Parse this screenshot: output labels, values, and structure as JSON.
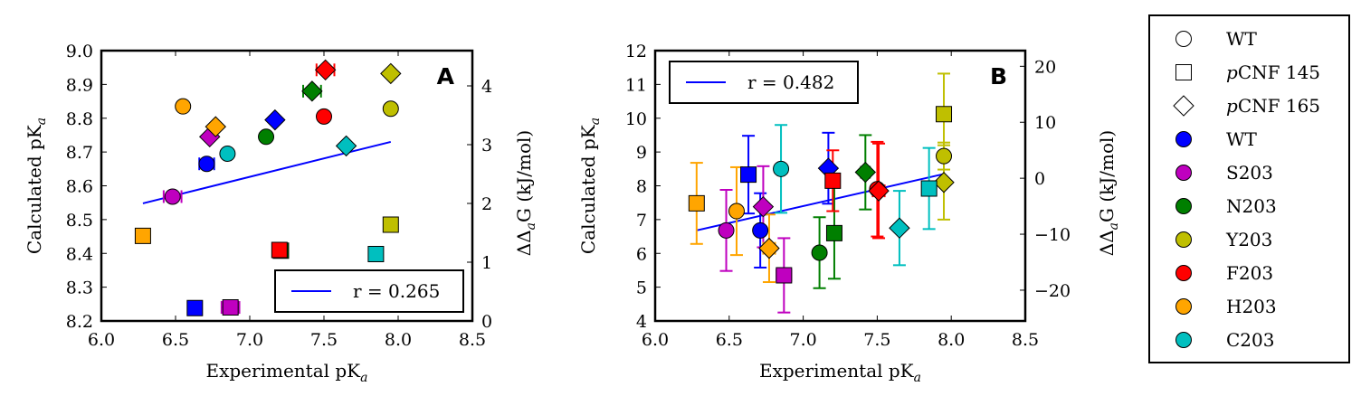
{
  "colors": {
    "WT": "#0000ff",
    "S203": "#bf00bf",
    "N203": "#007f00",
    "Y203": "#bfbf00",
    "F203": "#ff0000",
    "H203": "#ffa500",
    "C203": "#00bfbf",
    "fit": "#0000ff"
  },
  "legend": {
    "entries": [
      {
        "label": "WT",
        "shape": "circle",
        "fill": "none"
      },
      {
        "label": "pCNF 145",
        "shape": "square",
        "fill": "none",
        "prefix_italic": "p",
        "rest": "CNF 145"
      },
      {
        "label": "pCNF 165",
        "shape": "diamond",
        "fill": "none",
        "prefix_italic": "p",
        "rest": "CNF 165"
      },
      {
        "label": "WT",
        "shape": "circle",
        "fill": "WT"
      },
      {
        "label": "S203",
        "shape": "circle",
        "fill": "S203"
      },
      {
        "label": "N203",
        "shape": "circle",
        "fill": "N203"
      },
      {
        "label": "Y203",
        "shape": "circle",
        "fill": "Y203"
      },
      {
        "label": "F203",
        "shape": "circle",
        "fill": "F203"
      },
      {
        "label": "H203",
        "shape": "circle",
        "fill": "H203"
      },
      {
        "label": "C203",
        "shape": "circle",
        "fill": "C203"
      }
    ]
  },
  "chart_data": [
    {
      "type": "scatter",
      "panel_label": "A",
      "xlabel": "Experimental pKa",
      "ylabel": "Calculated pKa",
      "y2label": "ΔΔaG (kJ/mol)",
      "xlim": [
        6.0,
        8.5
      ],
      "ylim": [
        8.2,
        9.0
      ],
      "y2lim": [
        0,
        4.6
      ],
      "xticks": [
        "6.0",
        "6.5",
        "7.0",
        "7.5",
        "8.0",
        "8.5"
      ],
      "yticks": [
        "8.2",
        "8.3",
        "8.4",
        "8.5",
        "8.6",
        "8.7",
        "8.8",
        "8.9",
        "9.0"
      ],
      "y2ticks": [
        "0",
        "1",
        "2",
        "3",
        "4"
      ],
      "fit_label": "r = 0.265",
      "legend_position": "lower-right",
      "fit_line": {
        "x": [
          6.28,
          7.95
        ],
        "y": [
          8.548,
          8.73
        ]
      },
      "points": [
        {
          "group": "WT",
          "shape": "circle",
          "x": 6.71,
          "y": 8.665,
          "xerr": 0.05,
          "yerr": 0
        },
        {
          "group": "WT",
          "shape": "diamond",
          "x": 7.17,
          "y": 8.795,
          "xerr": 0,
          "yerr": 0
        },
        {
          "group": "WT",
          "shape": "square",
          "x": 6.63,
          "y": 8.238,
          "xerr": 0,
          "yerr": 0
        },
        {
          "group": "S203",
          "shape": "circle",
          "x": 6.48,
          "y": 8.568,
          "xerr": 0.06,
          "yerr": 0
        },
        {
          "group": "S203",
          "shape": "diamond",
          "x": 6.73,
          "y": 8.745,
          "xerr": 0,
          "yerr": 0
        },
        {
          "group": "S203",
          "shape": "square",
          "x": 6.87,
          "y": 8.24,
          "xerr": 0.06,
          "yerr": 0
        },
        {
          "group": "N203",
          "shape": "circle",
          "x": 7.11,
          "y": 8.745,
          "xerr": 0,
          "yerr": 0
        },
        {
          "group": "N203",
          "shape": "diamond",
          "x": 7.42,
          "y": 8.88,
          "xerr": 0.06,
          "yerr": 0
        },
        {
          "group": "N203",
          "shape": "square",
          "x": 7.21,
          "y": 8.408,
          "xerr": 0,
          "yerr": 0
        },
        {
          "group": "Y203",
          "shape": "circle",
          "x": 7.95,
          "y": 8.828,
          "xerr": 0,
          "yerr": 0
        },
        {
          "group": "Y203",
          "shape": "diamond",
          "x": 7.95,
          "y": 8.932,
          "xerr": 0,
          "yerr": 0
        },
        {
          "group": "Y203",
          "shape": "square",
          "x": 7.95,
          "y": 8.485,
          "xerr": 0,
          "yerr": 0
        },
        {
          "group": "F203",
          "shape": "circle",
          "x": 7.5,
          "y": 8.805,
          "xerr": 0,
          "yerr": 0
        },
        {
          "group": "F203",
          "shape": "diamond",
          "x": 7.51,
          "y": 8.943,
          "xerr": 0.06,
          "yerr": 0
        },
        {
          "group": "F203",
          "shape": "square",
          "x": 7.2,
          "y": 8.41,
          "xerr": 0,
          "yerr": 0
        },
        {
          "group": "H203",
          "shape": "circle",
          "x": 6.55,
          "y": 8.835,
          "xerr": 0,
          "yerr": 0
        },
        {
          "group": "H203",
          "shape": "diamond",
          "x": 6.77,
          "y": 8.775,
          "xerr": 0,
          "yerr": 0
        },
        {
          "group": "H203",
          "shape": "square",
          "x": 6.28,
          "y": 8.452,
          "xerr": 0,
          "yerr": 0
        },
        {
          "group": "C203",
          "shape": "circle",
          "x": 6.85,
          "y": 8.695,
          "xerr": 0,
          "yerr": 0
        },
        {
          "group": "C203",
          "shape": "diamond",
          "x": 7.65,
          "y": 8.718,
          "xerr": 0,
          "yerr": 0
        },
        {
          "group": "C203",
          "shape": "square",
          "x": 7.85,
          "y": 8.398,
          "xerr": 0,
          "yerr": 0
        }
      ]
    },
    {
      "type": "scatter",
      "panel_label": "B",
      "xlabel": "Experimental pKa",
      "ylabel": "Calculated pKa",
      "y2label": "ΔΔaG (kJ/mol)",
      "xlim": [
        6.0,
        8.5
      ],
      "ylim": [
        4,
        12
      ],
      "y2lim": [
        -25.5,
        22.8
      ],
      "xticks": [
        "6.0",
        "6.5",
        "7.0",
        "7.5",
        "8.0",
        "8.5"
      ],
      "yticks": [
        "4",
        "5",
        "6",
        "7",
        "8",
        "9",
        "10",
        "11",
        "12"
      ],
      "y2ticks": [
        "−20",
        "−10",
        "0",
        "10",
        "20"
      ],
      "y2tickvalues": [
        -20,
        -10,
        0,
        10,
        20
      ],
      "fit_label": "r = 0.482",
      "legend_position": "upper-left",
      "fit_line": {
        "x": [
          6.28,
          7.95
        ],
        "y": [
          6.68,
          8.35
        ]
      },
      "points": [
        {
          "group": "WT",
          "shape": "circle",
          "x": 6.71,
          "y": 6.68,
          "xerr": 0,
          "yerr": 1.1
        },
        {
          "group": "WT",
          "shape": "diamond",
          "x": 7.17,
          "y": 8.52,
          "xerr": 0,
          "yerr": 1.05
        },
        {
          "group": "WT",
          "shape": "square",
          "x": 6.63,
          "y": 8.33,
          "xerr": 0,
          "yerr": 1.15
        },
        {
          "group": "S203",
          "shape": "circle",
          "x": 6.48,
          "y": 6.68,
          "xerr": 0,
          "yerr": 1.2
        },
        {
          "group": "S203",
          "shape": "diamond",
          "x": 6.73,
          "y": 7.38,
          "xerr": 0,
          "yerr": 1.2
        },
        {
          "group": "S203",
          "shape": "square",
          "x": 6.87,
          "y": 5.35,
          "xerr": 0.05,
          "yerr": 1.1
        },
        {
          "group": "N203",
          "shape": "circle",
          "x": 7.11,
          "y": 6.02,
          "xerr": 0,
          "yerr": 1.05
        },
        {
          "group": "N203",
          "shape": "diamond",
          "x": 7.42,
          "y": 8.4,
          "xerr": 0.03,
          "yerr": 1.1
        },
        {
          "group": "N203",
          "shape": "square",
          "x": 7.21,
          "y": 6.6,
          "xerr": 0,
          "yerr": 1.35
        },
        {
          "group": "Y203",
          "shape": "circle",
          "x": 7.95,
          "y": 8.88,
          "xerr": 0,
          "yerr": 0.4
        },
        {
          "group": "Y203",
          "shape": "diamond",
          "x": 7.95,
          "y": 8.1,
          "xerr": 0,
          "yerr": 1.1
        },
        {
          "group": "Y203",
          "shape": "square",
          "x": 7.95,
          "y": 10.12,
          "xerr": 0,
          "yerr": 1.2
        },
        {
          "group": "F203",
          "shape": "circle",
          "x": 7.5,
          "y": 7.9,
          "xerr": 0,
          "yerr": 1.4
        },
        {
          "group": "F203",
          "shape": "diamond",
          "x": 7.51,
          "y": 7.85,
          "xerr": 0.04,
          "yerr": 1.4
        },
        {
          "group": "F203",
          "shape": "square",
          "x": 7.2,
          "y": 8.15,
          "xerr": 0,
          "yerr": 0.9
        },
        {
          "group": "H203",
          "shape": "circle",
          "x": 6.55,
          "y": 7.25,
          "xerr": 0,
          "yerr": 1.3
        },
        {
          "group": "H203",
          "shape": "diamond",
          "x": 6.77,
          "y": 6.15,
          "xerr": 0.04,
          "yerr": 1.0
        },
        {
          "group": "H203",
          "shape": "square",
          "x": 6.28,
          "y": 7.48,
          "xerr": 0,
          "yerr": 1.2
        },
        {
          "group": "C203",
          "shape": "circle",
          "x": 6.85,
          "y": 8.5,
          "xerr": 0,
          "yerr": 1.3
        },
        {
          "group": "C203",
          "shape": "diamond",
          "x": 7.65,
          "y": 6.75,
          "xerr": 0,
          "yerr": 1.1
        },
        {
          "group": "C203",
          "shape": "square",
          "x": 7.85,
          "y": 7.92,
          "xerr": 0.04,
          "yerr": 1.2
        }
      ]
    }
  ]
}
